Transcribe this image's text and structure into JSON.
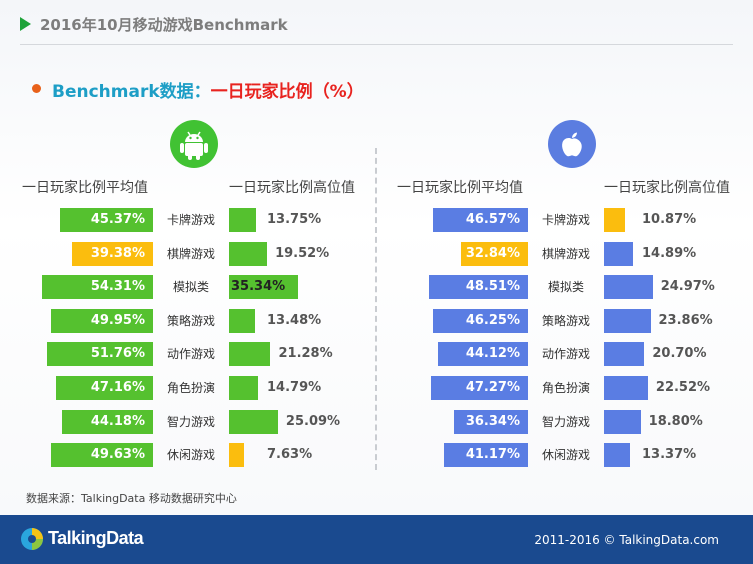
{
  "header": {
    "title": "2016年10月移动游戏Benchmark"
  },
  "subtitle": {
    "part1": "Benchmark数据：",
    "part2": "一日玩家比例（%）"
  },
  "android": {
    "icon": "android-icon",
    "avg_heading": "一日玩家比例平均值",
    "high_heading": "一日玩家比例高位值"
  },
  "ios": {
    "icon": "apple-icon",
    "avg_heading": "一日玩家比例平均值",
    "high_heading": "一日玩家比例高位值"
  },
  "colors": {
    "android": "#55c12f",
    "ios": "#5a7de3",
    "highlight": "#fbbd0e"
  },
  "chart_data": [
    {
      "type": "bar",
      "categories": [
        "卡牌游戏",
        "棋牌游戏",
        "模拟类",
        "策略游戏",
        "动作游戏",
        "角色扮演",
        "智力游戏",
        "休闲游戏"
      ],
      "series": [
        {
          "name": "一日玩家比例平均值",
          "values": [
            45.37,
            39.38,
            54.31,
            49.95,
            51.76,
            47.16,
            44.18,
            49.63
          ],
          "labels": [
            "45.37%",
            "39.38%",
            "54.31%",
            "49.95%",
            "51.76%",
            "47.16%",
            "44.18%",
            "49.63%"
          ],
          "highlight_index": 1
        },
        {
          "name": "一日玩家比例高位值",
          "values": [
            13.75,
            19.52,
            35.34,
            13.48,
            21.28,
            14.79,
            25.09,
            7.63
          ],
          "labels": [
            "13.75%",
            "19.52%",
            "35.34%",
            "13.48%",
            "21.28%",
            "14.79%",
            "25.09%",
            "7.63%"
          ],
          "highlight_index": 7
        }
      ]
    },
    {
      "type": "bar",
      "categories": [
        "卡牌游戏",
        "棋牌游戏",
        "模拟类",
        "策略游戏",
        "动作游戏",
        "角色扮演",
        "智力游戏",
        "休闲游戏"
      ],
      "series": [
        {
          "name": "一日玩家比例平均值",
          "values": [
            46.57,
            32.84,
            48.51,
            46.25,
            44.12,
            47.27,
            36.34,
            41.17
          ],
          "labels": [
            "46.57%",
            "32.84%",
            "48.51%",
            "46.25%",
            "44.12%",
            "47.27%",
            "36.34%",
            "41.17%"
          ],
          "highlight_index": 1
        },
        {
          "name": "一日玩家比例高位值",
          "values": [
            10.87,
            14.89,
            24.97,
            23.86,
            20.7,
            22.52,
            18.8,
            13.37
          ],
          "labels": [
            "10.87%",
            "14.89%",
            "24.97%",
            "23.86%",
            "20.70%",
            "22.52%",
            "18.80%",
            "13.37%"
          ],
          "highlight_index": 0
        }
      ]
    }
  ],
  "source": "数据来源：TalkingData 移动数据研究中心",
  "footer": {
    "logo": "TalkingData",
    "copyright": "2011-2016 © TalkingData.com"
  }
}
